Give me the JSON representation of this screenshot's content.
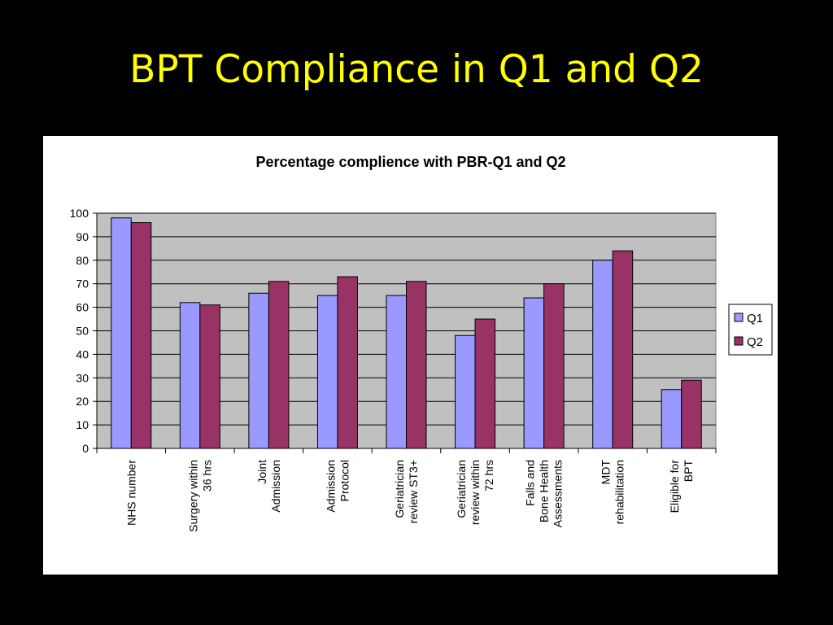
{
  "slide": {
    "title": "BPT Compliance in Q1 and Q2"
  },
  "chart_data": {
    "type": "bar",
    "title": "Percentage complience with PBR-Q1 and Q2",
    "xlabel": "",
    "ylabel": "",
    "ylim": [
      0,
      100
    ],
    "yticks": [
      0,
      10,
      20,
      30,
      40,
      50,
      60,
      70,
      80,
      90,
      100
    ],
    "grid": true,
    "legend_position": "right",
    "categories": [
      [
        "NHS number"
      ],
      [
        "Surgery within",
        "36 hrs"
      ],
      [
        "Joint",
        "Admission"
      ],
      [
        "Admission",
        "Protocol"
      ],
      [
        "Geriatrician",
        "review ST3+"
      ],
      [
        "Geriatrician",
        "review within",
        "72 hrs"
      ],
      [
        "Falls and",
        "Bone Health",
        "Assessments"
      ],
      [
        "MDT",
        "rehabilitation"
      ],
      [
        "Eligible for",
        "BPT"
      ]
    ],
    "series": [
      {
        "name": "Q1",
        "color": "#9999FF",
        "values": [
          98,
          62,
          66,
          65,
          65,
          48,
          64,
          80,
          25
        ]
      },
      {
        "name": "Q2",
        "color": "#993366",
        "values": [
          96,
          61,
          71,
          73,
          71,
          55,
          70,
          84,
          29
        ]
      }
    ],
    "plot_background": "#C0C0C0"
  }
}
